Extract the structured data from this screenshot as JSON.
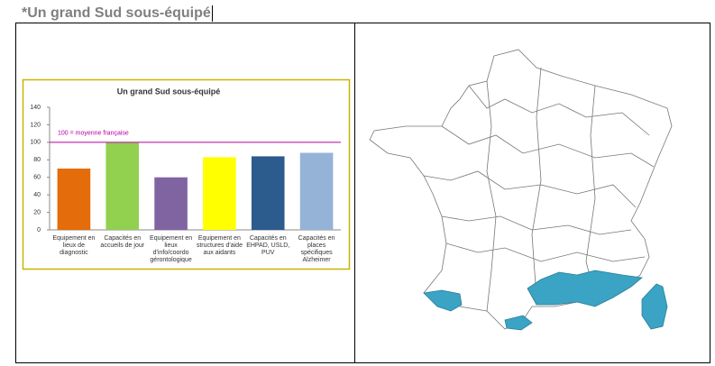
{
  "heading": "*Un grand Sud sous-équipé",
  "chart_data": {
    "type": "bar",
    "title": "Un grand Sud sous-équipé",
    "categories": [
      "Equipement en lieux de diagnostic",
      "Capacités en accueils de jour",
      "Equipement en lieux d'info/coordo gérontologique",
      "Equipement en structures d'aide aux aidants",
      "Capacités en EHPAD, USLD, PUV",
      "Capacités en places spécifiques Alzheimer"
    ],
    "values": [
      70,
      100,
      60,
      83,
      84,
      88
    ],
    "colors": [
      "#e46c0a",
      "#92d050",
      "#8064a2",
      "#ffff00",
      "#2c5b8e",
      "#95b3d7"
    ],
    "ylim": [
      0,
      140
    ],
    "yticks": [
      0,
      20,
      40,
      60,
      80,
      100,
      120,
      140
    ],
    "reference_line": {
      "value": 100,
      "label": "100 = moyenne française",
      "color": "#b4009e"
    }
  }
}
